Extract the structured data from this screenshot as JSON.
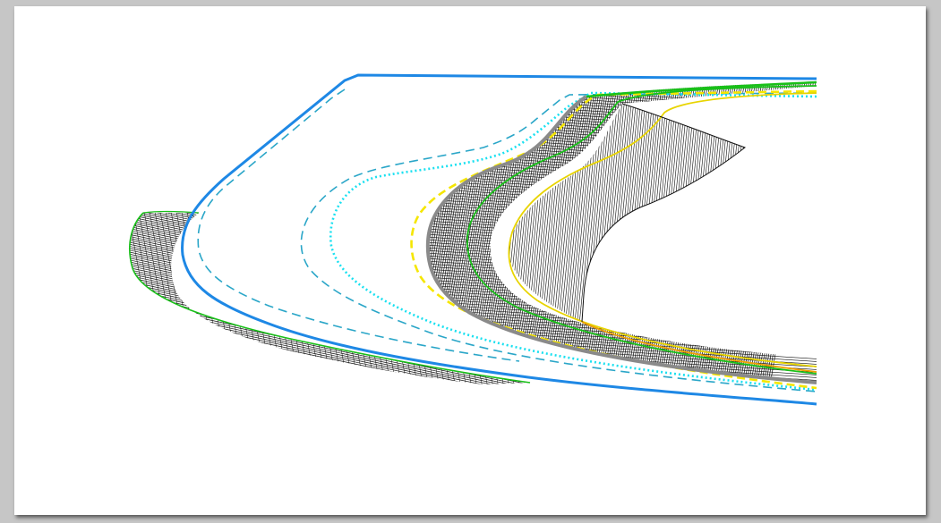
{
  "window": {
    "title": ""
  },
  "drawing": {
    "background": "#ffffff",
    "surround_color": "#c6c6c6",
    "curves": [
      {
        "name": "outer-boundary-curve",
        "color": "#1e88e5",
        "style": "solid"
      },
      {
        "name": "offset-dashed-blue-curve",
        "color": "#2aa6c8",
        "style": "dashed"
      },
      {
        "name": "cyan-dotted-curve",
        "color": "#19e0f0",
        "style": "dotted"
      },
      {
        "name": "yellow-dashed-curve",
        "color": "#f5e600",
        "style": "dashed"
      },
      {
        "name": "gray-edge-curve",
        "color": "#8a8a8a",
        "style": "solid"
      },
      {
        "name": "green-guide-curve",
        "color": "#19c019",
        "style": "solid"
      },
      {
        "name": "yellow-guide-curve",
        "color": "#e8d400",
        "style": "solid"
      },
      {
        "name": "orange-guide-curve",
        "color": "#f0a000",
        "style": "solid"
      }
    ],
    "hatch_regions": [
      {
        "name": "left-hatched-band",
        "color": "#111111"
      },
      {
        "name": "inner-hatched-band",
        "color": "#111111"
      },
      {
        "name": "inner-blade-surface",
        "color": "#111111"
      }
    ]
  }
}
